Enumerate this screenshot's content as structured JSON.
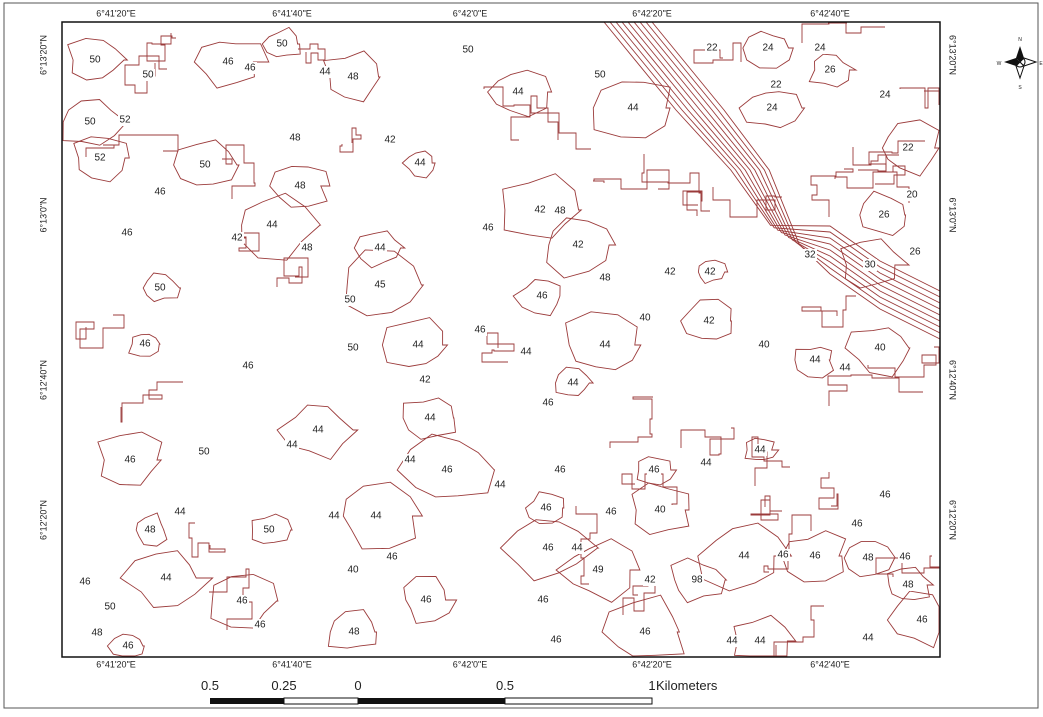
{
  "map": {
    "top_labels": [
      "6°41'20\"E",
      "6°41'40\"E",
      "6°42'0\"E",
      "6°42'20\"E",
      "6°42'40\"E"
    ],
    "bottom_labels": [
      "6°41'20\"E",
      "6°41'40\"E",
      "6°42'0\"E",
      "6°42'20\"E",
      "6°42'40\"E"
    ],
    "left_labels": [
      "6°13'20\"N",
      "6°13'0\"N",
      "6°12'40\"N",
      "6°12'20\"N"
    ],
    "right_labels": [
      "6°13'20\"N",
      "6°13'0\"N",
      "6°12'40\"N",
      "6°12'20\"N"
    ],
    "contour_labels": [
      "50",
      "50",
      "46",
      "46",
      "50",
      "44",
      "48",
      "50",
      "44",
      "50",
      "44",
      "22",
      "24",
      "24",
      "26",
      "22",
      "24",
      "24",
      "22",
      "20",
      "26",
      "26",
      "30",
      "32",
      "50",
      "52",
      "52",
      "48",
      "50",
      "46",
      "48",
      "42",
      "44",
      "46",
      "42",
      "48",
      "42",
      "48",
      "46",
      "46",
      "50",
      "42",
      "44",
      "48",
      "44",
      "50",
      "45",
      "50",
      "44",
      "44",
      "44",
      "40",
      "42",
      "42",
      "42",
      "40",
      "44",
      "44",
      "40",
      "46",
      "46",
      "42",
      "44",
      "46",
      "44",
      "44",
      "44",
      "50",
      "46",
      "44",
      "46",
      "46",
      "46",
      "44",
      "44",
      "46",
      "48",
      "44",
      "50",
      "44",
      "44",
      "46",
      "46",
      "44",
      "44",
      "46",
      "46",
      "46",
      "48",
      "46",
      "48",
      "46",
      "44",
      "50",
      "46",
      "40",
      "46",
      "46",
      "49",
      "42",
      "98",
      "48",
      "46",
      "46",
      "48",
      "46",
      "46",
      "44",
      "44",
      "44",
      "46",
      "44",
      "46",
      "46",
      "40",
      "46"
    ],
    "scale": {
      "ticks": [
        "0.5",
        "0.25",
        "0",
        "0.5",
        "1"
      ],
      "unit": "Kilometers"
    },
    "compass": [
      "N",
      "E",
      "S",
      "W"
    ]
  }
}
